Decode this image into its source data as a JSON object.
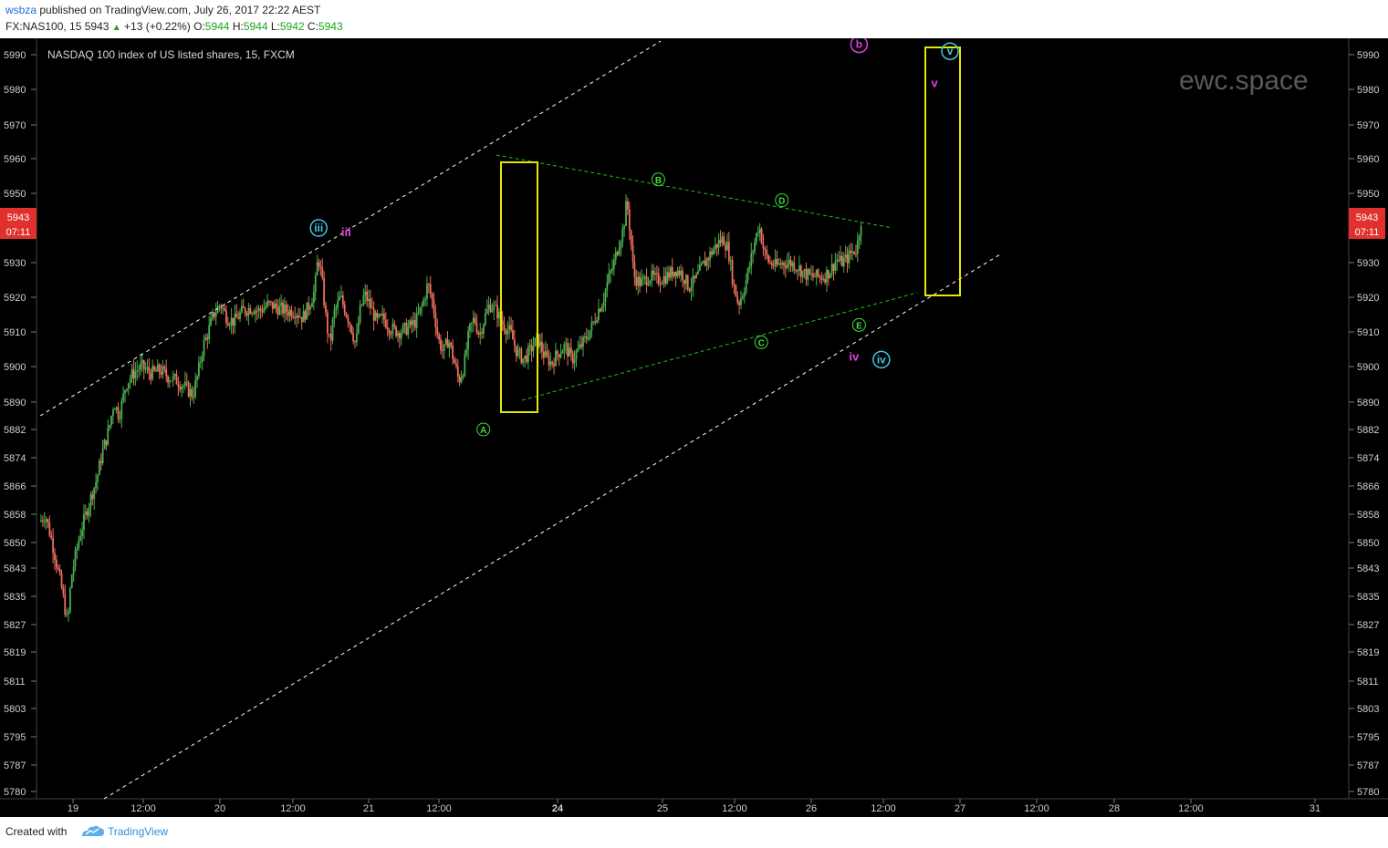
{
  "header": {
    "author": "wsbza",
    "published_text": "published on TradingView.com, July 26, 2017 22:22 AEST",
    "symbol": "FX:NAS100, 15",
    "last_price": "5943",
    "change": "+13 (+0.22%)",
    "o_label": "O:",
    "o_value": "5944",
    "h_label": "H:",
    "h_value": "5944",
    "l_label": "L:",
    "l_value": "5942",
    "c_label": "C:",
    "c_value": "5943"
  },
  "chart_title": "NASDAQ 100 index of US listed shares, 15, FXCM",
  "watermark": "ewc.space",
  "price_badge": {
    "price": "5943",
    "countdown": "07:11",
    "color": "#e0312f"
  },
  "footer": {
    "created_with": "Created with",
    "brand": "TradingView"
  },
  "colors": {
    "up": "#4caf50",
    "down": "#ef6f5e",
    "boxes": "#e6e600",
    "triangle": "#20c020",
    "channel": "#ffffff",
    "wave_cyan": "#40c8e8",
    "wave_magenta": "#e040e0",
    "wave_green": "#3fdc3f"
  },
  "chart_data": {
    "type": "candlestick",
    "title": "NASDAQ 100 index of US listed shares, 15, FXCM",
    "y_axis": {
      "ticks": [
        5990,
        5980,
        5970,
        5960,
        5950,
        5943,
        5930,
        5920,
        5910,
        5900,
        5890,
        5882,
        5874,
        5866,
        5858,
        5850,
        5843,
        5835,
        5827,
        5819,
        5811,
        5803,
        5795,
        5787,
        5780
      ],
      "tick_labels": [
        "5990",
        "5980",
        "5970",
        "5960",
        "5950",
        "5943",
        "5930",
        "5920",
        "5910",
        "5900",
        "5890",
        "5882",
        "5874",
        "5866",
        "5858",
        "5850",
        "5843",
        "5835",
        "5827",
        "5819",
        "5811",
        "5803",
        "5795",
        "5787",
        "5780"
      ],
      "range": [
        5778,
        5993
      ]
    },
    "x_axis": {
      "tick_labels": [
        "19",
        "12:00",
        "20",
        "12:00",
        "21",
        "12:00",
        "24",
        "25",
        "12:00",
        "26",
        "12:00",
        "27",
        "12:00",
        "28",
        "12:00",
        "31"
      ],
      "bold_labels": [
        "24"
      ]
    },
    "price_path": [
      [
        0,
        5856
      ],
      [
        6,
        5858
      ],
      [
        16,
        5848
      ],
      [
        26,
        5836
      ],
      [
        32,
        5827
      ],
      [
        36,
        5840
      ],
      [
        40,
        5845
      ],
      [
        46,
        5852
      ],
      [
        52,
        5857
      ],
      [
        58,
        5862
      ],
      [
        66,
        5868
      ],
      [
        72,
        5875
      ],
      [
        80,
        5882
      ],
      [
        86,
        5890
      ],
      [
        92,
        5886
      ],
      [
        100,
        5895
      ],
      [
        108,
        5898
      ],
      [
        118,
        5900
      ],
      [
        130,
        5898
      ],
      [
        140,
        5899
      ],
      [
        150,
        5897
      ],
      [
        160,
        5896
      ],
      [
        170,
        5894
      ],
      [
        178,
        5892
      ],
      [
        184,
        5898
      ],
      [
        190,
        5906
      ],
      [
        196,
        5910
      ],
      [
        202,
        5915
      ],
      [
        210,
        5918
      ],
      [
        218,
        5914
      ],
      [
        226,
        5913
      ],
      [
        236,
        5916
      ],
      [
        246,
        5917
      ],
      [
        256,
        5916
      ],
      [
        266,
        5918
      ],
      [
        276,
        5917
      ],
      [
        288,
        5916
      ],
      [
        298,
        5916
      ],
      [
        306,
        5914
      ],
      [
        314,
        5918
      ],
      [
        320,
        5922
      ],
      [
        324,
        5932
      ],
      [
        328,
        5926
      ],
      [
        334,
        5912
      ],
      [
        338,
        5906
      ],
      [
        342,
        5915
      ],
      [
        350,
        5920
      ],
      [
        356,
        5916
      ],
      [
        362,
        5912
      ],
      [
        368,
        5906
      ],
      [
        372,
        5915
      ],
      [
        378,
        5921
      ],
      [
        384,
        5918
      ],
      [
        392,
        5913
      ],
      [
        400,
        5914
      ],
      [
        408,
        5911
      ],
      [
        418,
        5910
      ],
      [
        428,
        5911
      ],
      [
        438,
        5913
      ],
      [
        446,
        5918
      ],
      [
        452,
        5924
      ],
      [
        458,
        5918
      ],
      [
        464,
        5908
      ],
      [
        470,
        5904
      ],
      [
        476,
        5908
      ],
      [
        482,
        5902
      ],
      [
        488,
        5896
      ],
      [
        494,
        5900
      ],
      [
        500,
        5910
      ],
      [
        506,
        5914
      ],
      [
        512,
        5909
      ],
      [
        518,
        5914
      ],
      [
        524,
        5918
      ],
      [
        532,
        5916
      ],
      [
        540,
        5912
      ],
      [
        548,
        5910
      ],
      [
        556,
        5904
      ],
      [
        564,
        5902
      ],
      [
        572,
        5905
      ],
      [
        580,
        5908
      ],
      [
        588,
        5903
      ],
      [
        596,
        5901
      ],
      [
        604,
        5904
      ],
      [
        612,
        5906
      ],
      [
        620,
        5902
      ],
      [
        628,
        5905
      ],
      [
        636,
        5908
      ],
      [
        644,
        5912
      ],
      [
        650,
        5916
      ],
      [
        656,
        5919
      ],
      [
        662,
        5925
      ],
      [
        668,
        5929
      ],
      [
        674,
        5935
      ],
      [
        680,
        5940
      ],
      [
        684,
        5948
      ],
      [
        688,
        5938
      ],
      [
        692,
        5926
      ],
      [
        700,
        5924
      ],
      [
        710,
        5926
      ],
      [
        720,
        5925
      ],
      [
        730,
        5926
      ],
      [
        740,
        5928
      ],
      [
        748,
        5927
      ],
      [
        756,
        5923
      ],
      [
        764,
        5925
      ],
      [
        772,
        5929
      ],
      [
        780,
        5932
      ],
      [
        788,
        5935
      ],
      [
        796,
        5937
      ],
      [
        802,
        5934
      ],
      [
        808,
        5924
      ],
      [
        814,
        5918
      ],
      [
        820,
        5922
      ],
      [
        826,
        5928
      ],
      [
        832,
        5935
      ],
      [
        838,
        5941
      ],
      [
        844,
        5933
      ],
      [
        850,
        5930
      ],
      [
        858,
        5929
      ],
      [
        866,
        5930
      ],
      [
        874,
        5930
      ],
      [
        882,
        5929
      ],
      [
        890,
        5927
      ],
      [
        898,
        5926
      ],
      [
        906,
        5926
      ],
      [
        914,
        5926
      ],
      [
        922,
        5928
      ],
      [
        928,
        5931
      ],
      [
        934,
        5930
      ],
      [
        940,
        5931
      ],
      [
        946,
        5933
      ],
      [
        952,
        5934
      ],
      [
        958,
        5944
      ]
    ],
    "waves": [
      {
        "label": "iii",
        "style": "circle",
        "color": "cyan",
        "bar": 330,
        "price": 5940
      },
      {
        "label": "iii",
        "style": "text",
        "color": "magenta",
        "bar": 362,
        "price": 5939
      },
      {
        "label": "A",
        "style": "circle",
        "color": "green",
        "bar": 522,
        "price": 5882
      },
      {
        "label": "B",
        "style": "circle",
        "color": "green",
        "bar": 726,
        "price": 5954
      },
      {
        "label": "C",
        "style": "circle",
        "color": "green",
        "bar": 846,
        "price": 5907
      },
      {
        "label": "D",
        "style": "circle",
        "color": "green",
        "bar": 870,
        "price": 5948
      },
      {
        "label": "E",
        "style": "circle",
        "color": "green",
        "bar": 960,
        "price": 5912
      },
      {
        "label": "iv",
        "style": "text",
        "color": "magenta",
        "bar": 954,
        "price": 5903
      },
      {
        "label": "iv",
        "style": "circle",
        "color": "cyan",
        "bar": 986,
        "price": 5902
      },
      {
        "label": "b",
        "style": "circle",
        "color": "magenta",
        "bar": 960,
        "price": 5993
      },
      {
        "label": "v",
        "style": "circle",
        "color": "cyan",
        "bar": 1066,
        "price": 5991
      },
      {
        "label": "v",
        "style": "text",
        "color": "magenta",
        "bar": 1048,
        "price": 5982
      }
    ],
    "grid": false,
    "scale_per_bar_px": 0.94
  }
}
